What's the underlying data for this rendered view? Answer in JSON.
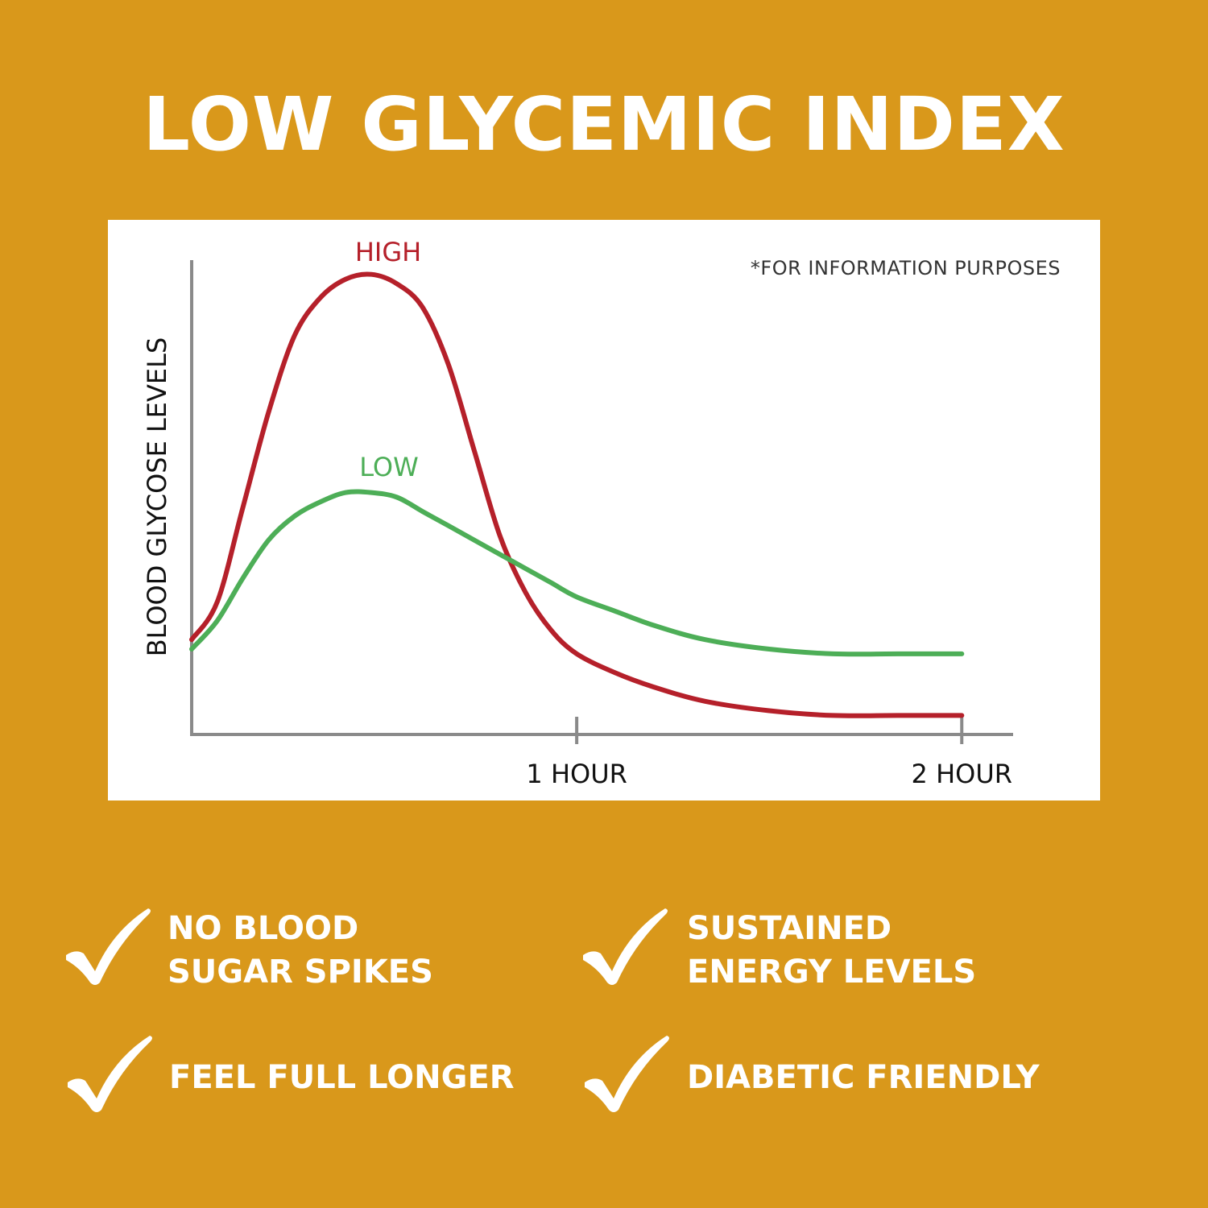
{
  "title": "LOW GLYCEMIC INDEX",
  "chart_note": "*FOR INFORMATION PURPOSES",
  "colors": {
    "background": "#D9981B",
    "high": "#B5202A",
    "low": "#4DAE57",
    "axis": "#8a8a8a"
  },
  "chart_data": {
    "type": "line",
    "ylabel": "BLOOD GLYCOSE LEVELS",
    "xlabel": "",
    "x_ticks": [
      {
        "value": 60,
        "label": "1 HOUR"
      },
      {
        "value": 120,
        "label": "2 HOUR"
      }
    ],
    "xlim": [
      0,
      128
    ],
    "ylim": [
      0,
      100
    ],
    "grid": false,
    "series": [
      {
        "name": "HIGH",
        "x": [
          0,
          4,
          8,
          12,
          16,
          20,
          24,
          28,
          32,
          36,
          40,
          44,
          48,
          52,
          56,
          60,
          66,
          72,
          80,
          90,
          100,
          110,
          120
        ],
        "y": [
          20,
          28,
          48,
          68,
          84,
          92,
          96,
          97,
          95,
          90,
          78,
          60,
          42,
          30,
          22,
          17,
          13,
          10,
          7,
          5,
          4,
          4,
          4
        ]
      },
      {
        "name": "LOW",
        "x": [
          0,
          4,
          8,
          12,
          16,
          20,
          24,
          28,
          32,
          36,
          40,
          44,
          48,
          52,
          56,
          60,
          66,
          72,
          80,
          90,
          100,
          110,
          120
        ],
        "y": [
          18,
          24,
          33,
          41,
          46,
          49,
          51,
          51,
          50,
          47,
          44,
          41,
          38,
          35,
          32,
          29,
          26,
          23,
          20,
          18,
          17,
          17,
          17
        ]
      }
    ]
  },
  "features": [
    {
      "line1": "NO BLOOD",
      "line2": "SUGAR SPIKES"
    },
    {
      "line1": "SUSTAINED",
      "line2": "ENERGY LEVELS"
    },
    {
      "line1": "FEEL FULL LONGER",
      "line2": ""
    },
    {
      "line1": "DIABETIC FRIENDLY",
      "line2": ""
    }
  ]
}
